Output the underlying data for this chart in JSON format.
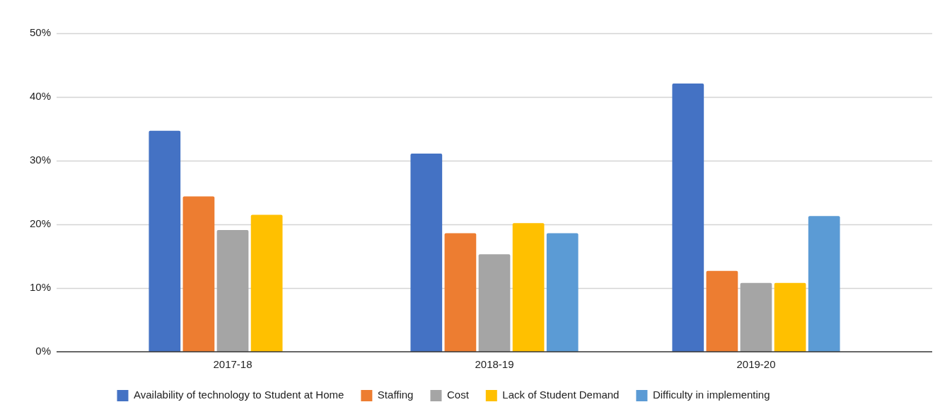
{
  "chart_data": {
    "type": "bar",
    "categories": [
      "2017-18",
      "2018-19",
      "2019-20"
    ],
    "series": [
      {
        "name": "Availability of technology to Student at Home",
        "color": "#4472c4",
        "values": [
          34.7,
          31.1,
          42.1
        ]
      },
      {
        "name": "Staffing",
        "color": "#ed7d31",
        "values": [
          24.4,
          18.6,
          12.7
        ]
      },
      {
        "name": "Cost",
        "color": "#a5a5a5",
        "values": [
          19.1,
          15.3,
          10.8
        ]
      },
      {
        "name": "Lack of Student Demand",
        "color": "#ffc000",
        "values": [
          21.5,
          20.2,
          10.8
        ]
      },
      {
        "name": "Difficulty in implementing",
        "color": "#5b9bd5",
        "values": [
          null,
          18.6,
          21.3
        ]
      }
    ],
    "ylim": [
      0,
      50
    ],
    "yticks": [
      {
        "value": 0,
        "label": "0%"
      },
      {
        "value": 10,
        "label": "10%"
      },
      {
        "value": 20,
        "label": "20%"
      },
      {
        "value": 30,
        "label": "30%"
      },
      {
        "value": 40,
        "label": "40%"
      },
      {
        "value": 50,
        "label": "50%"
      }
    ],
    "grid": "y",
    "legend": "bottom"
  }
}
